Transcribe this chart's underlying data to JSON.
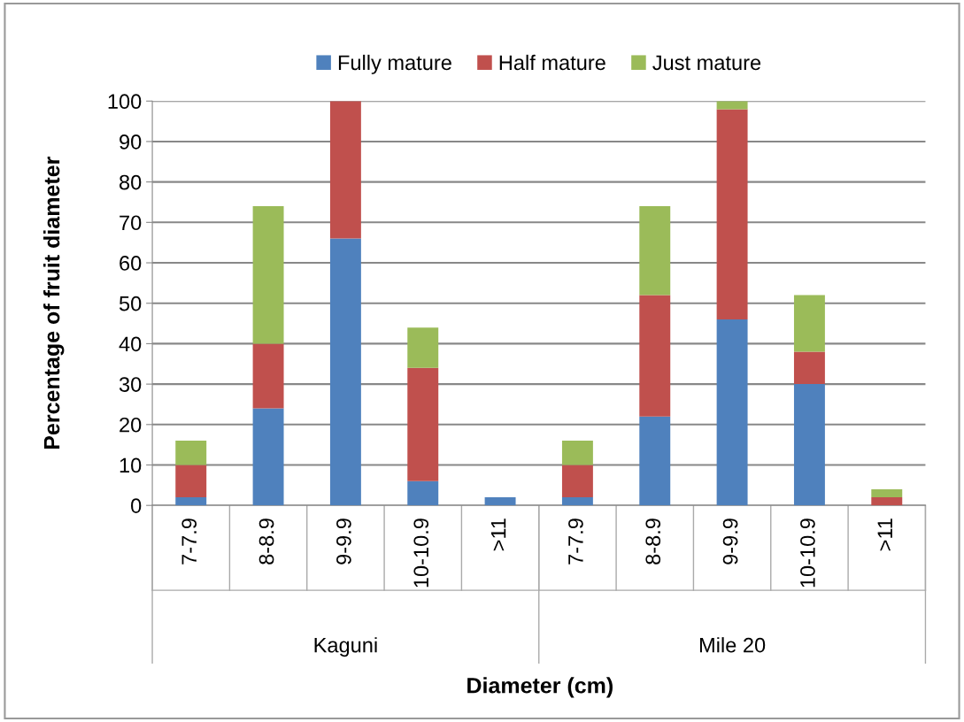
{
  "chart_data": {
    "type": "bar",
    "stacked": true,
    "categories": [
      "7-7.9",
      "8-8.9",
      "9-9.9",
      "10-10.9",
      ">11",
      "7-7.9",
      "8-8.9",
      "9-9.9",
      "10-10.9",
      ">11"
    ],
    "series": [
      {
        "name": "Fully mature",
        "color": "#4f81bd",
        "values": [
          2,
          24,
          66,
          6,
          2,
          2,
          22,
          46,
          30,
          0
        ]
      },
      {
        "name": "Half mature",
        "color": "#c0504d",
        "values": [
          8,
          16,
          34,
          28,
          0,
          8,
          30,
          52,
          8,
          2
        ]
      },
      {
        "name": "Just mature",
        "color": "#9bbb59",
        "values": [
          6,
          34,
          0,
          10,
          0,
          6,
          22,
          2,
          14,
          2
        ]
      }
    ],
    "annotations": [
      "Kaguni",
      "Mile 20"
    ],
    "xlabel": "Diameter (cm)",
    "ylabel": "Percentage of fruit diameter",
    "ylim": [
      0,
      100
    ],
    "yticks": [
      0,
      10,
      20,
      30,
      40,
      50,
      60,
      70,
      80,
      90,
      100
    ],
    "grid": "y",
    "legend": "top"
  }
}
